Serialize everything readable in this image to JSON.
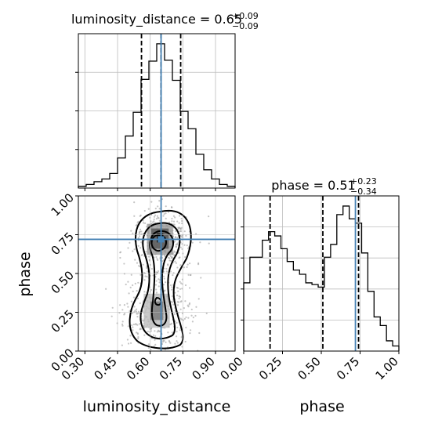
{
  "chart_data": {
    "type": "corner",
    "params": [
      "luminosity_distance",
      "phase"
    ],
    "truths": {
      "luminosity_distance": 0.65,
      "phase": 0.72
    },
    "titles": [
      {
        "param": "luminosity_distance",
        "value": "0.65",
        "plus": "+0.09",
        "minus": "−0.09",
        "prefix": "luminosity_distance = "
      },
      {
        "param": "phase",
        "value": "0.51",
        "plus": "+0.23",
        "minus": "−0.34",
        "prefix": "phase = "
      }
    ],
    "axes": {
      "luminosity_distance": {
        "label": "luminosity_distance",
        "range": [
          0.27,
          0.99
        ],
        "ticks": [
          0.3,
          0.45,
          0.6,
          0.75,
          0.9
        ],
        "tick_labels": [
          "0.30",
          "0.45",
          "0.60",
          "0.75",
          "0.90"
        ]
      },
      "phase": {
        "label": "phase",
        "range": [
          0.0,
          1.0
        ],
        "ticks": [
          0.0,
          0.25,
          0.5,
          0.75,
          1.0
        ],
        "tick_labels": [
          "0.00",
          "0.25",
          "0.50",
          "0.75",
          "1.00"
        ]
      }
    },
    "hist_luminosity_distance": {
      "quantiles": [
        0.56,
        0.65,
        0.74
      ],
      "edges": [
        0.27,
        0.306,
        0.342,
        0.378,
        0.414,
        0.45,
        0.486,
        0.522,
        0.558,
        0.594,
        0.63,
        0.666,
        0.702,
        0.738,
        0.774,
        0.81,
        0.846,
        0.882,
        0.918,
        0.954,
        0.99
      ],
      "counts": [
        2,
        4,
        7,
        10,
        16,
        33,
        57,
        83,
        119,
        139,
        158,
        140,
        118,
        84,
        65,
        37,
        20,
        10,
        4,
        2
      ]
    },
    "hist_phase": {
      "quantiles": [
        0.17,
        0.51,
        0.74
      ],
      "edges": [
        0.0,
        0.04,
        0.08,
        0.12,
        0.16,
        0.2,
        0.24,
        0.28,
        0.32,
        0.36,
        0.4,
        0.44,
        0.48,
        0.52,
        0.56,
        0.6,
        0.64,
        0.68,
        0.72,
        0.76,
        0.8,
        0.84,
        0.88,
        0.92,
        0.96,
        1.0
      ],
      "counts": [
        80,
        110,
        110,
        130,
        140,
        135,
        120,
        105,
        95,
        90,
        80,
        78,
        75,
        110,
        125,
        160,
        170,
        155,
        150,
        115,
        70,
        40,
        30,
        12,
        6
      ]
    }
  }
}
